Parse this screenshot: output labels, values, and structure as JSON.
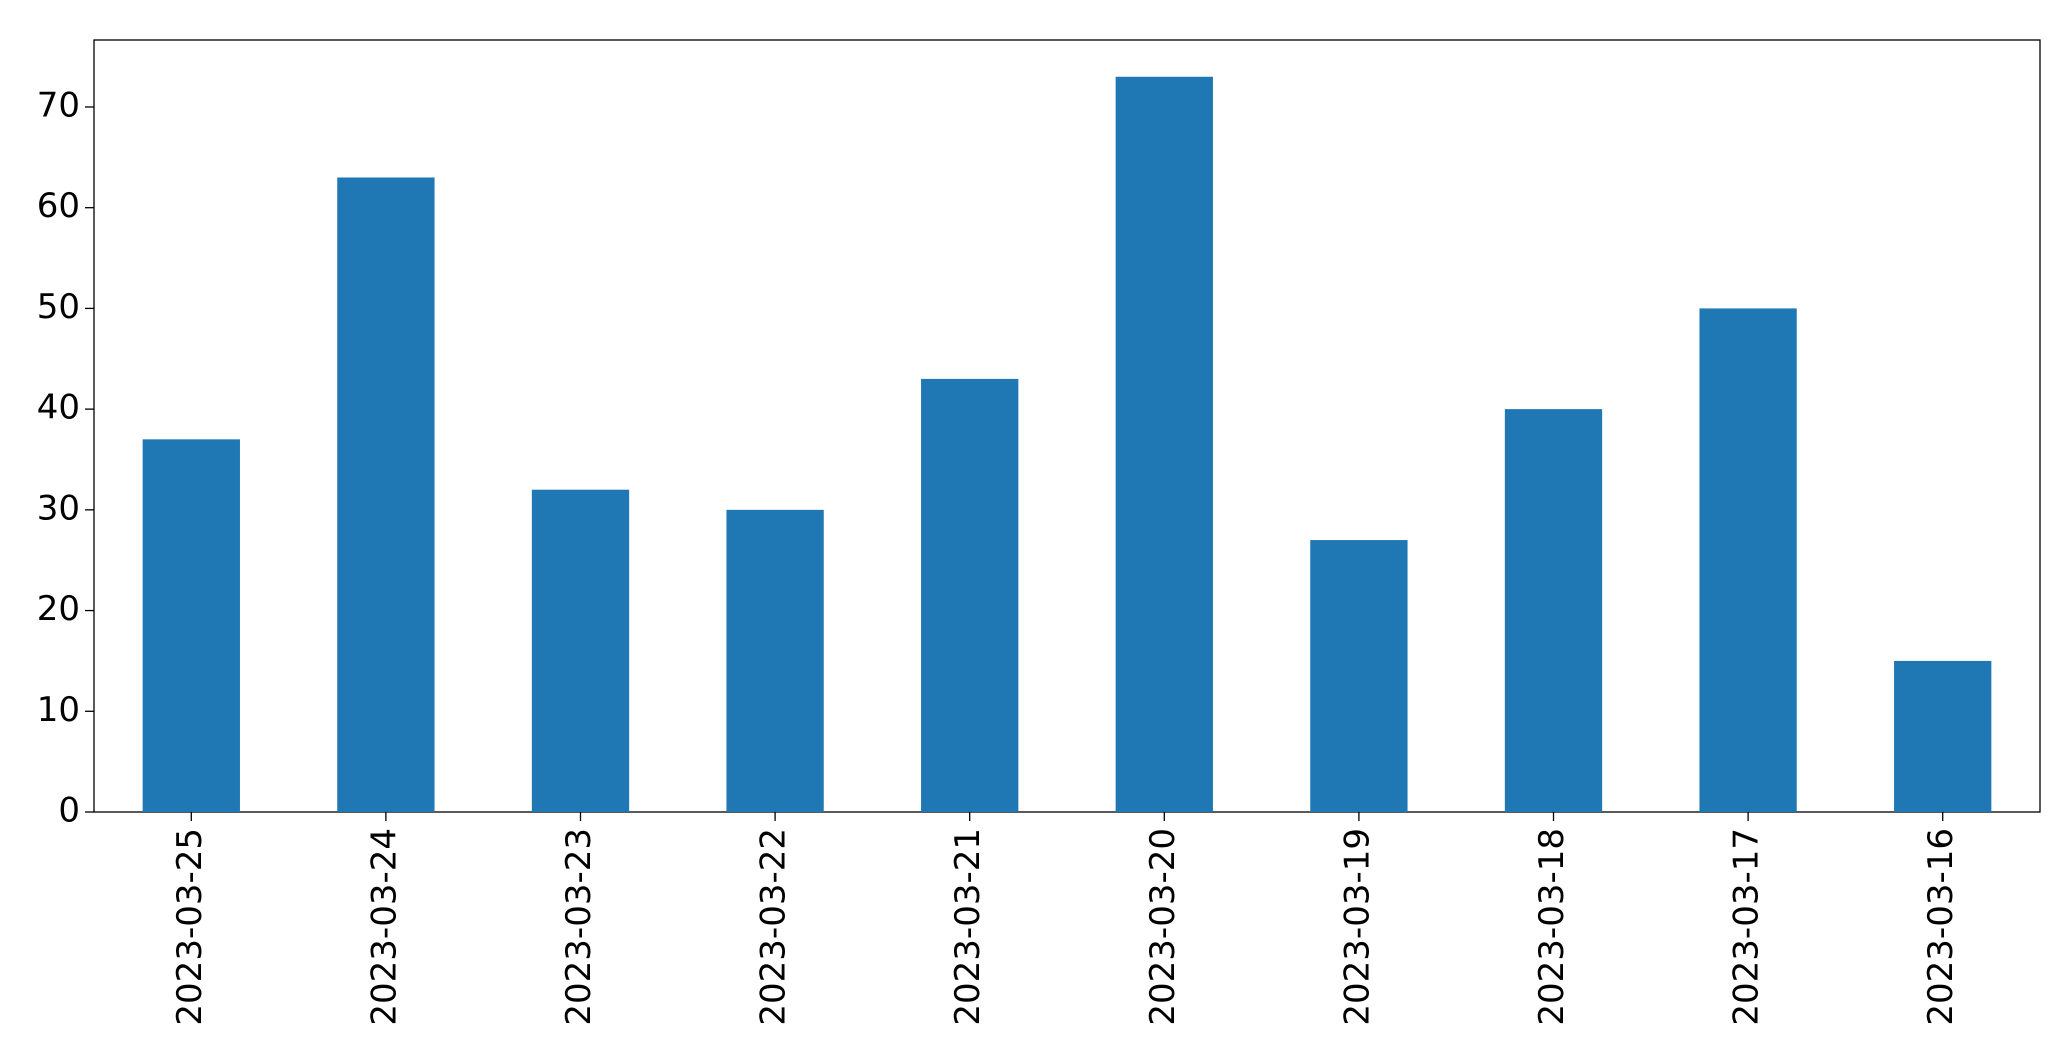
{
  "chart_data": {
    "type": "bar",
    "categories": [
      "2023-03-25",
      "2023-03-24",
      "2023-03-23",
      "2023-03-22",
      "2023-03-21",
      "2023-03-20",
      "2023-03-19",
      "2023-03-18",
      "2023-03-17",
      "2023-03-16"
    ],
    "values": [
      37,
      63,
      32,
      30,
      43,
      73,
      27,
      40,
      50,
      15
    ],
    "color": "#1f77b4",
    "ylim": [
      0,
      76.65
    ],
    "yticks": [
      0,
      10,
      20,
      30,
      40,
      50,
      60,
      70
    ],
    "grid": false
  }
}
